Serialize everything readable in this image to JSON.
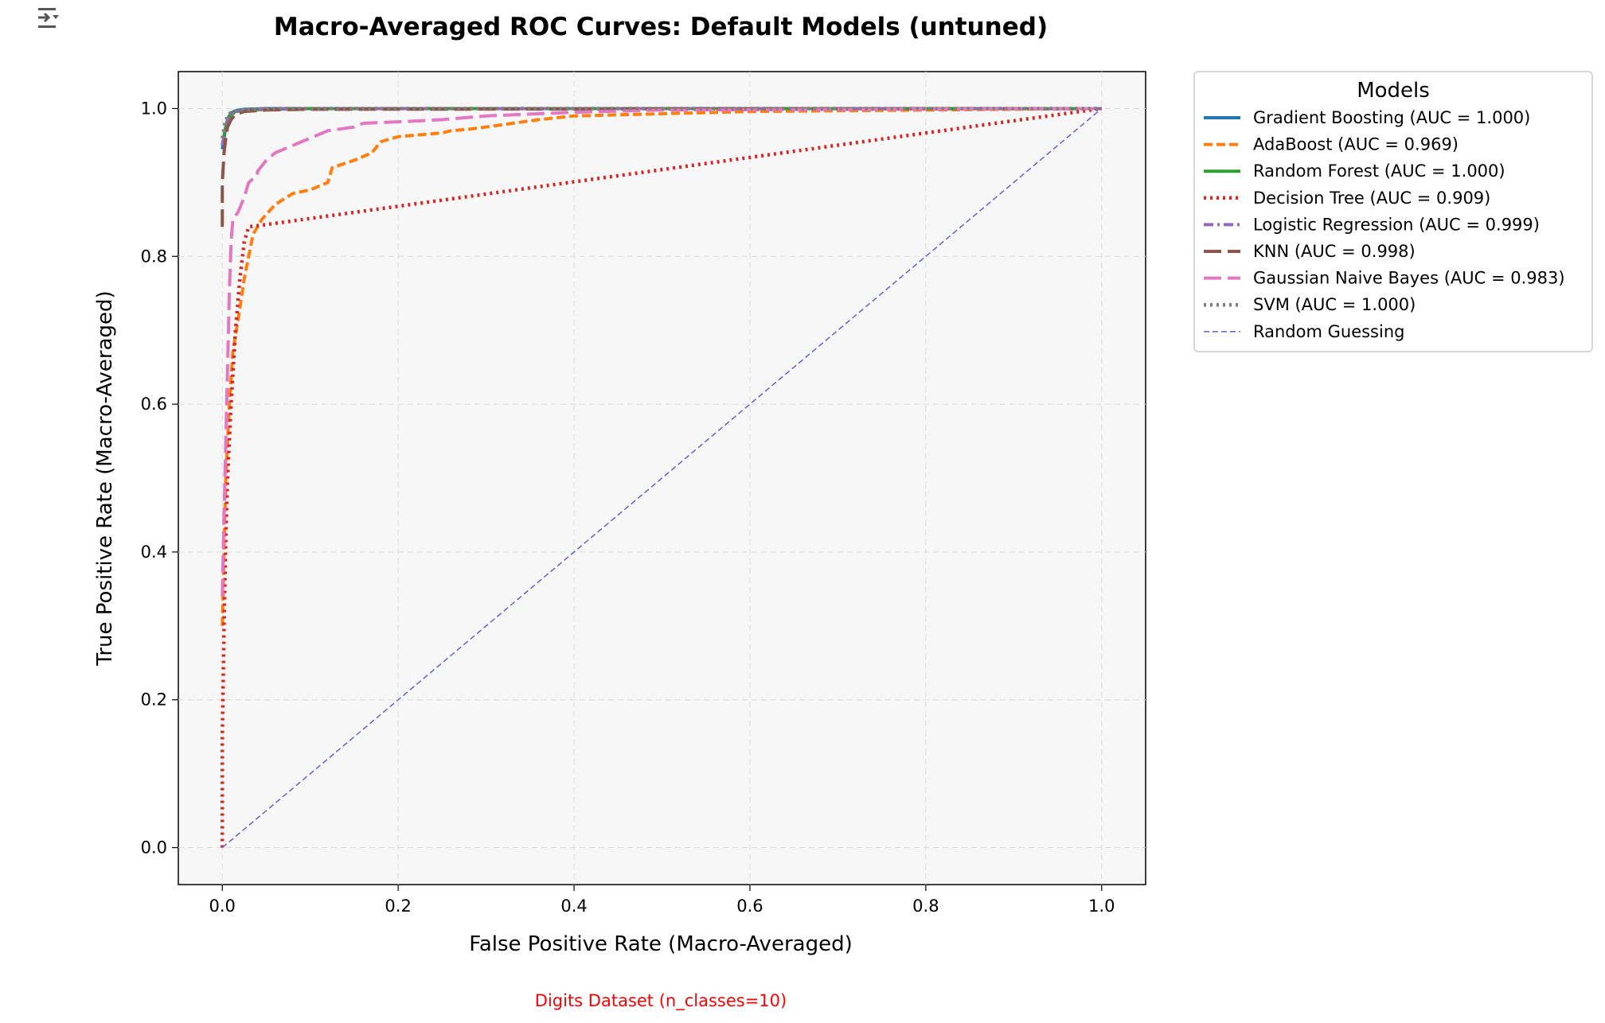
{
  "output_controls": {
    "icon": "output-expand-icon"
  },
  "chart_data": {
    "type": "line",
    "title": "Macro-Averaged ROC Curves: Default Models (untuned)",
    "xlabel": "False Positive Rate (Macro-Averaged)",
    "ylabel": "True Positive Rate (Macro-Averaged)",
    "footnote": "Digits Dataset (n_classes=10)",
    "xlim": [
      -0.05,
      1.05
    ],
    "ylim": [
      -0.05,
      1.05
    ],
    "xticks": [
      "0.0",
      "0.2",
      "0.4",
      "0.6",
      "0.8",
      "1.0"
    ],
    "yticks": [
      "0.0",
      "0.2",
      "0.4",
      "0.6",
      "0.8",
      "1.0"
    ],
    "grid": true,
    "legend_title": "Models",
    "legend_position": "outside-upper-right",
    "plot_background": "#f7f7f7",
    "title_color": "#000000",
    "footnote_color": "#ff0000",
    "series": [
      {
        "name": "Gradient Boosting (AUC = 1.000)",
        "color": "#1f77b4",
        "dash": "solid",
        "points": [
          [
            0,
            0.945
          ],
          [
            0.002,
            0.96
          ],
          [
            0.004,
            0.975
          ],
          [
            0.007,
            0.988
          ],
          [
            0.01,
            0.994
          ],
          [
            0.015,
            0.997
          ],
          [
            0.025,
            0.999
          ],
          [
            0.05,
            1.0
          ],
          [
            1,
            1
          ]
        ]
      },
      {
        "name": "AdaBoost (AUC = 0.969)",
        "color": "#ff7f0e",
        "dash": "dashed",
        "points": [
          [
            0,
            0.3
          ],
          [
            0.002,
            0.4
          ],
          [
            0.004,
            0.5
          ],
          [
            0.008,
            0.6
          ],
          [
            0.012,
            0.67
          ],
          [
            0.02,
            0.73
          ],
          [
            0.025,
            0.77
          ],
          [
            0.03,
            0.8
          ],
          [
            0.035,
            0.83
          ],
          [
            0.045,
            0.85
          ],
          [
            0.06,
            0.87
          ],
          [
            0.08,
            0.885
          ],
          [
            0.1,
            0.89
          ],
          [
            0.12,
            0.9
          ],
          [
            0.125,
            0.92
          ],
          [
            0.15,
            0.93
          ],
          [
            0.17,
            0.94
          ],
          [
            0.18,
            0.955
          ],
          [
            0.2,
            0.962
          ],
          [
            0.23,
            0.965
          ],
          [
            0.25,
            0.967
          ],
          [
            0.26,
            0.97
          ],
          [
            0.28,
            0.972
          ],
          [
            0.3,
            0.975
          ],
          [
            0.33,
            0.98
          ],
          [
            0.36,
            0.985
          ],
          [
            0.4,
            0.99
          ],
          [
            0.5,
            0.993
          ],
          [
            0.6,
            0.996
          ],
          [
            0.8,
            0.998
          ],
          [
            1,
            1
          ]
        ]
      },
      {
        "name": "Random Forest (AUC = 1.000)",
        "color": "#2ca02c",
        "dash": "solid",
        "points": [
          [
            0,
            0.95
          ],
          [
            0.003,
            0.97
          ],
          [
            0.006,
            0.985
          ],
          [
            0.01,
            0.992
          ],
          [
            0.015,
            0.996
          ],
          [
            0.03,
            0.998
          ],
          [
            0.06,
            0.999
          ],
          [
            0.1,
            1.0
          ],
          [
            1,
            1
          ]
        ]
      },
      {
        "name": "Decision Tree (AUC = 0.909)",
        "color": "#d62728",
        "dash": "dotted",
        "points": [
          [
            0,
            0
          ],
          [
            0.0,
            0.15
          ],
          [
            0.002,
            0.3
          ],
          [
            0.004,
            0.42
          ],
          [
            0.006,
            0.5
          ],
          [
            0.01,
            0.6
          ],
          [
            0.015,
            0.7
          ],
          [
            0.02,
            0.77
          ],
          [
            0.025,
            0.82
          ],
          [
            0.03,
            0.84
          ],
          [
            0.05,
            0.843
          ],
          [
            1,
            1
          ]
        ]
      },
      {
        "name": "Logistic Regression (AUC = 0.999)",
        "color": "#9467bd",
        "dash": "dashdot",
        "points": [
          [
            0,
            0.95
          ],
          [
            0.003,
            0.97
          ],
          [
            0.007,
            0.985
          ],
          [
            0.012,
            0.993
          ],
          [
            0.02,
            0.997
          ],
          [
            0.04,
            0.999
          ],
          [
            0.08,
            1.0
          ],
          [
            1,
            1
          ]
        ]
      },
      {
        "name": "KNN (AUC = 0.998)",
        "color": "#8c564b",
        "dash": "longdash",
        "points": [
          [
            0,
            0.84
          ],
          [
            0.0,
            0.9
          ],
          [
            0.002,
            0.94
          ],
          [
            0.004,
            0.96
          ],
          [
            0.006,
            0.975
          ],
          [
            0.01,
            0.985
          ],
          [
            0.015,
            0.992
          ],
          [
            0.025,
            0.996
          ],
          [
            0.05,
            0.998
          ],
          [
            0.1,
            0.999
          ],
          [
            1,
            1
          ]
        ]
      },
      {
        "name": "Gaussian Naive Bayes (AUC = 0.983)",
        "color": "#e377c2",
        "dash": "longdash",
        "points": [
          [
            0,
            0.34
          ],
          [
            0.002,
            0.45
          ],
          [
            0.004,
            0.55
          ],
          [
            0.006,
            0.65
          ],
          [
            0.008,
            0.75
          ],
          [
            0.01,
            0.82
          ],
          [
            0.012,
            0.85
          ],
          [
            0.018,
            0.86
          ],
          [
            0.025,
            0.88
          ],
          [
            0.03,
            0.9
          ],
          [
            0.04,
            0.91
          ],
          [
            0.04,
            0.915
          ],
          [
            0.05,
            0.93
          ],
          [
            0.06,
            0.94
          ],
          [
            0.08,
            0.95
          ],
          [
            0.1,
            0.96
          ],
          [
            0.12,
            0.97
          ],
          [
            0.15,
            0.975
          ],
          [
            0.16,
            0.98
          ],
          [
            0.2,
            0.982
          ],
          [
            0.25,
            0.985
          ],
          [
            0.3,
            0.99
          ],
          [
            0.4,
            0.995
          ],
          [
            0.5,
            0.998
          ],
          [
            1,
            1
          ]
        ]
      },
      {
        "name": "SVM (AUC = 1.000)",
        "color": "#7f7f7f",
        "dash": "dotted",
        "points": [
          [
            0,
            0.96
          ],
          [
            0.003,
            0.98
          ],
          [
            0.006,
            0.99
          ],
          [
            0.01,
            0.995
          ],
          [
            0.02,
            0.998
          ],
          [
            0.05,
            1.0
          ],
          [
            1,
            1
          ]
        ]
      },
      {
        "name": "Random Guessing",
        "color": "#6a6ac8",
        "dash": "thin-dashed",
        "points": [
          [
            0,
            0
          ],
          [
            1,
            1
          ]
        ]
      }
    ]
  }
}
